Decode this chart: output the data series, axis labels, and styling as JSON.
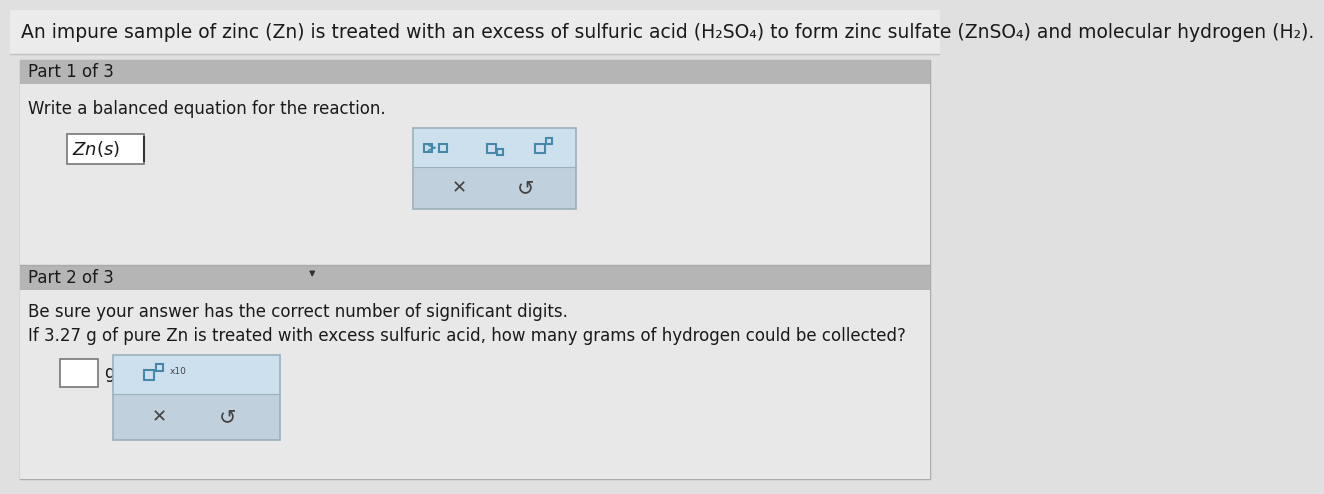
{
  "bg_top": "#e8e8e8",
  "bg_main": "#d8d8d8",
  "white_bg": "#f5f5f5",
  "section_header_bg": "#b8b8b8",
  "popup_top_bg": "#cce0ee",
  "popup_bottom_bg": "#c0d0dc",
  "popup_border": "#9ab0bc",
  "input_box_color": "#ffffff",
  "input_border_color": "#777777",
  "text_color": "#1a1a1a",
  "title_text": "An impure sample of zinc (Zn) is treated with an excess of sulfuric acid (H₂SO₄) to form zinc sulfate (ZnSO₄) and molecular hydrogen (H₂).",
  "part1_label": "Part 1 of 3",
  "part1_instruction": "Write a balanced equation for the reaction.",
  "part2_label": "Part 2 of 3",
  "part2_instruction1": "Be sure your answer has the correct number of significant digits.",
  "part2_instruction2": "If 3.27 g of pure Zn is treated with excess sulfuric acid, how many grams of hydrogen could be collected?",
  "font_size_title": 13.5,
  "font_size_label": 12,
  "font_size_instruction": 12,
  "font_size_answer": 12,
  "outer_border_color": "#aaaaaa",
  "outer_bg": "#e0e0e0"
}
